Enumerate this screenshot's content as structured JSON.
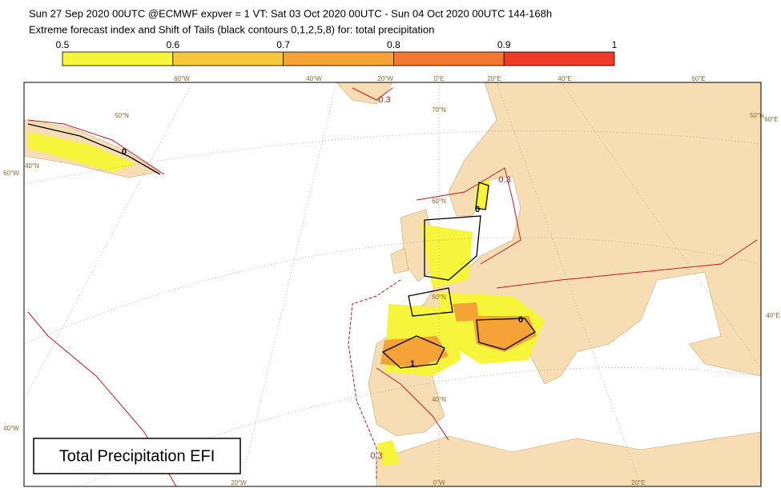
{
  "header": {
    "line1": "Sun 27 Sep 2020 00UTC @ECMWF expver = 1 VT: Sat 03 Oct 2020 00UTC - Sun 04 Oct 2020 00UTC  144-168h",
    "line2": "Extreme forecast index and Shift of Tails (black contours 0,1,2,5,8) for: total precipitation"
  },
  "colorbar": {
    "ticks": [
      0.5,
      0.6,
      0.7,
      0.8,
      0.9,
      1
    ],
    "colors": [
      "#f6f53c",
      "#f6c93c",
      "#f5a336",
      "#f17a30",
      "#ef3b28"
    ]
  },
  "graticule": {
    "labels": [
      "60°W",
      "40°W",
      "20°W",
      "0°E",
      "20°E",
      "40°E",
      "60°E",
      "60°W",
      "40°W",
      "60°E",
      "40°E",
      "20°W",
      "0°W",
      "20°E",
      "70°N",
      "60°N",
      "50°N",
      "40°N",
      "50°N",
      "40°N",
      "50°N"
    ]
  },
  "contour_labels": [
    "0.3",
    "0.3",
    "0.3",
    "0",
    "0",
    "1",
    "0"
  ],
  "map_label": "Total Precipitation EFI"
}
